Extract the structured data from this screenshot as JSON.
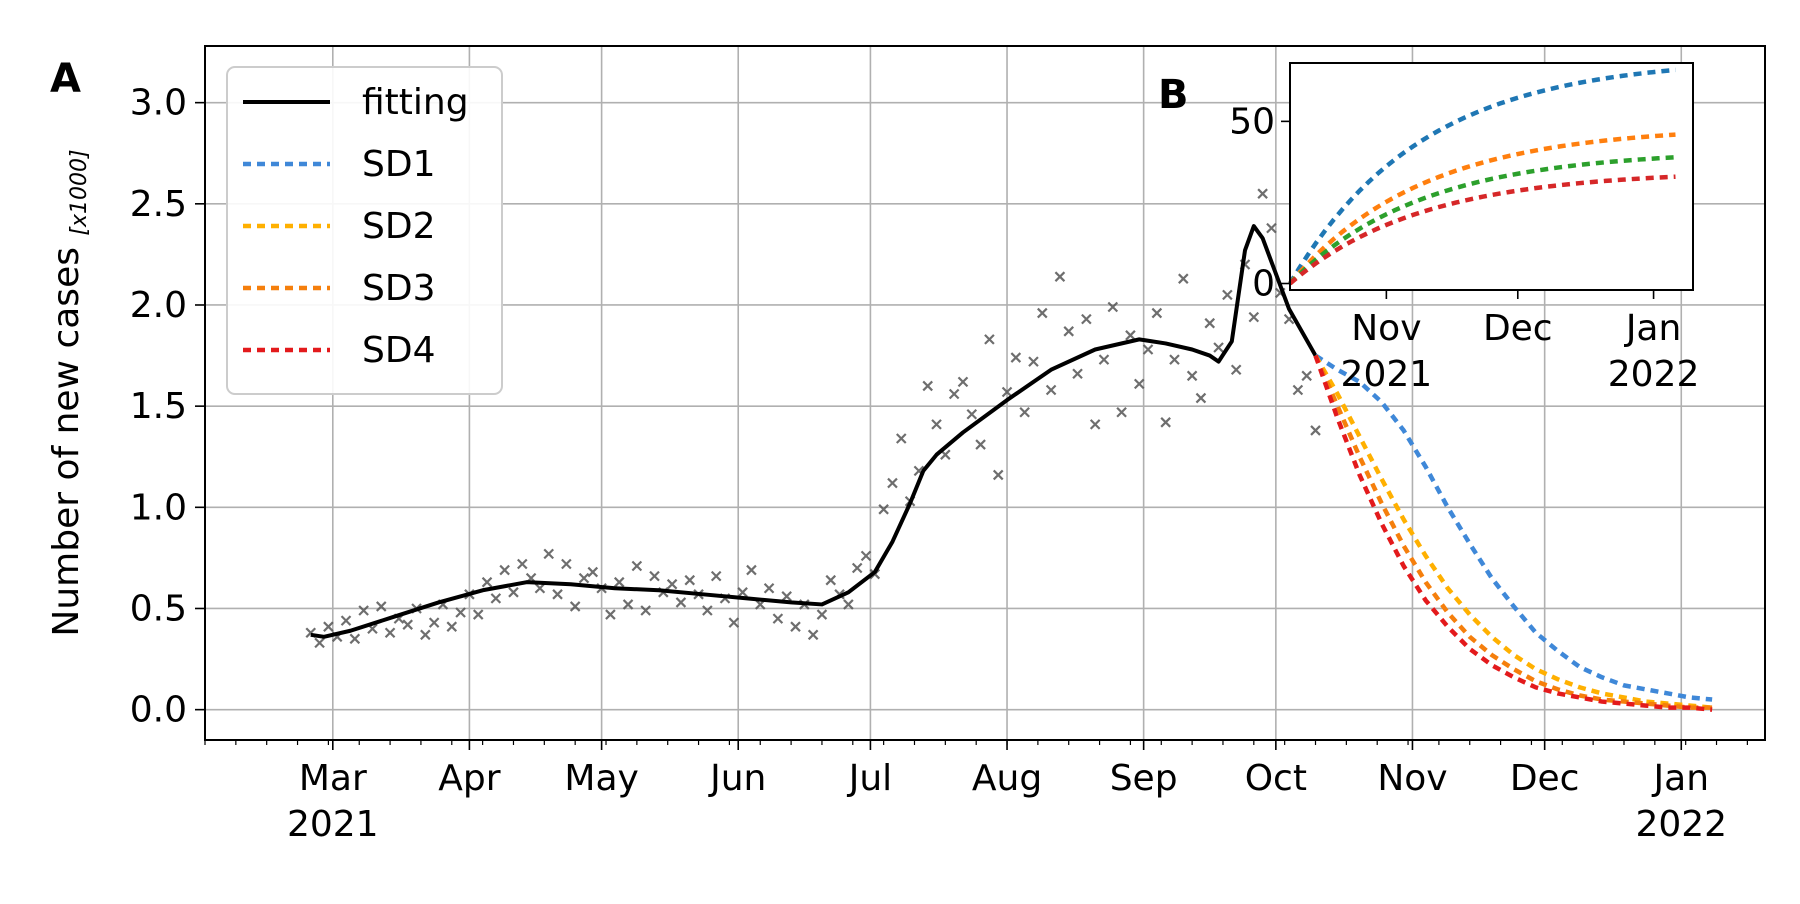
{
  "chart_data": [
    {
      "panel_label": "A",
      "type": "line",
      "ylabel": "Number of new cases",
      "ylabel_unit": "[x1000]",
      "ylim": [
        -0.15,
        3.28
      ],
      "xlim": [
        "2021-01-31",
        "2022-01-20"
      ],
      "grid": true,
      "legend_position": "top-left",
      "y_ticks": [
        "0.0",
        "0.5",
        "1.0",
        "1.5",
        "2.0",
        "2.5",
        "3.0"
      ],
      "x_ticks": [
        {
          "date": "2021-03-01",
          "label": "Mar",
          "year": "2021"
        },
        {
          "date": "2021-04-01",
          "label": "Apr",
          "year": ""
        },
        {
          "date": "2021-05-01",
          "label": "May",
          "year": ""
        },
        {
          "date": "2021-06-01",
          "label": "Jun",
          "year": ""
        },
        {
          "date": "2021-07-01",
          "label": "Jul",
          "year": ""
        },
        {
          "date": "2021-08-01",
          "label": "Aug",
          "year": ""
        },
        {
          "date": "2021-09-01",
          "label": "Sep",
          "year": ""
        },
        {
          "date": "2021-10-01",
          "label": "Oct",
          "year": ""
        },
        {
          "date": "2021-11-01",
          "label": "Nov",
          "year": ""
        },
        {
          "date": "2021-12-01",
          "label": "Dec",
          "year": ""
        },
        {
          "date": "2022-01-01",
          "label": "Jan",
          "year": "2022"
        }
      ],
      "series": [
        {
          "name": "fitting",
          "color": "#000000",
          "style": "solid",
          "x": [
            "2021-02-24",
            "2021-02-27",
            "2021-03-05",
            "2021-03-15",
            "2021-03-25",
            "2021-04-04",
            "2021-04-14",
            "2021-04-24",
            "2021-05-04",
            "2021-05-14",
            "2021-05-24",
            "2021-06-03",
            "2021-06-13",
            "2021-06-20",
            "2021-06-26",
            "2021-07-02",
            "2021-07-06",
            "2021-07-10",
            "2021-07-13",
            "2021-07-16",
            "2021-07-22",
            "2021-08-01",
            "2021-08-11",
            "2021-08-21",
            "2021-08-31",
            "2021-09-06",
            "2021-09-12",
            "2021-09-16",
            "2021-09-18",
            "2021-09-21",
            "2021-09-24",
            "2021-09-26",
            "2021-09-28",
            "2021-10-04",
            "2021-10-10"
          ],
          "y": [
            0.37,
            0.36,
            0.39,
            0.46,
            0.53,
            0.59,
            0.63,
            0.62,
            0.6,
            0.59,
            0.57,
            0.55,
            0.53,
            0.52,
            0.58,
            0.68,
            0.83,
            1.02,
            1.18,
            1.26,
            1.37,
            1.53,
            1.68,
            1.78,
            1.83,
            1.81,
            1.78,
            1.75,
            1.72,
            1.82,
            2.27,
            2.39,
            2.33,
            1.98,
            1.75
          ]
        },
        {
          "name": "SD1",
          "color": "#3f88d8",
          "style": "dotted",
          "x": [
            "2021-10-10",
            "2021-10-15",
            "2021-10-20",
            "2021-10-25",
            "2021-10-30",
            "2021-11-04",
            "2021-11-09",
            "2021-11-14",
            "2021-11-19",
            "2021-11-24",
            "2021-11-29",
            "2021-12-04",
            "2021-12-09",
            "2021-12-14",
            "2021-12-19",
            "2021-12-24",
            "2021-12-29",
            "2022-01-03",
            "2022-01-08"
          ],
          "y": [
            1.75,
            1.68,
            1.62,
            1.52,
            1.38,
            1.2,
            1.0,
            0.82,
            0.65,
            0.51,
            0.38,
            0.29,
            0.21,
            0.16,
            0.12,
            0.1,
            0.08,
            0.06,
            0.05
          ]
        },
        {
          "name": "SD2",
          "color": "#ffb000",
          "style": "dotted",
          "x": [
            "2021-10-10",
            "2021-10-15",
            "2021-10-20",
            "2021-10-25",
            "2021-10-30",
            "2021-11-04",
            "2021-11-09",
            "2021-11-14",
            "2021-11-19",
            "2021-11-24",
            "2021-11-29",
            "2021-12-04",
            "2021-12-09",
            "2021-12-14",
            "2021-12-19",
            "2021-12-24",
            "2021-12-29",
            "2022-01-03",
            "2022-01-08"
          ],
          "y": [
            1.75,
            1.56,
            1.35,
            1.14,
            0.94,
            0.76,
            0.6,
            0.47,
            0.36,
            0.27,
            0.2,
            0.15,
            0.11,
            0.08,
            0.06,
            0.04,
            0.03,
            0.02,
            0.01
          ]
        },
        {
          "name": "SD3",
          "color": "#f57f0c",
          "style": "dotted",
          "x": [
            "2021-10-10",
            "2021-10-15",
            "2021-10-20",
            "2021-10-25",
            "2021-10-30",
            "2021-11-04",
            "2021-11-09",
            "2021-11-14",
            "2021-11-19",
            "2021-11-24",
            "2021-11-29",
            "2021-12-04",
            "2021-12-09",
            "2021-12-14",
            "2021-12-19",
            "2021-12-24",
            "2021-12-29",
            "2022-01-03",
            "2022-01-08"
          ],
          "y": [
            1.75,
            1.5,
            1.25,
            1.02,
            0.81,
            0.63,
            0.48,
            0.36,
            0.27,
            0.2,
            0.14,
            0.1,
            0.07,
            0.05,
            0.04,
            0.03,
            0.02,
            0.01,
            0.01
          ]
        },
        {
          "name": "SD4",
          "color": "#e31a1c",
          "style": "dotted",
          "x": [
            "2021-10-10",
            "2021-10-15",
            "2021-10-20",
            "2021-10-25",
            "2021-10-30",
            "2021-11-04",
            "2021-11-09",
            "2021-11-14",
            "2021-11-19",
            "2021-11-24",
            "2021-11-29",
            "2021-12-04",
            "2021-12-09",
            "2021-12-14",
            "2021-12-19",
            "2021-12-24",
            "2021-12-29",
            "2022-01-03",
            "2022-01-08"
          ],
          "y": [
            1.75,
            1.44,
            1.16,
            0.92,
            0.71,
            0.54,
            0.41,
            0.3,
            0.22,
            0.16,
            0.11,
            0.08,
            0.06,
            0.04,
            0.03,
            0.02,
            0.01,
            0.01,
            0.0
          ]
        }
      ],
      "scatter": {
        "marker": "x",
        "color": "#555555",
        "x": [
          "2021-02-24",
          "2021-02-26",
          "2021-02-28",
          "2021-03-02",
          "2021-03-04",
          "2021-03-06",
          "2021-03-08",
          "2021-03-10",
          "2021-03-12",
          "2021-03-14",
          "2021-03-16",
          "2021-03-18",
          "2021-03-20",
          "2021-03-22",
          "2021-03-24",
          "2021-03-26",
          "2021-03-28",
          "2021-03-30",
          "2021-04-01",
          "2021-04-03",
          "2021-04-05",
          "2021-04-07",
          "2021-04-09",
          "2021-04-11",
          "2021-04-13",
          "2021-04-15",
          "2021-04-17",
          "2021-04-19",
          "2021-04-21",
          "2021-04-23",
          "2021-04-25",
          "2021-04-27",
          "2021-04-29",
          "2021-05-01",
          "2021-05-03",
          "2021-05-05",
          "2021-05-07",
          "2021-05-09",
          "2021-05-11",
          "2021-05-13",
          "2021-05-15",
          "2021-05-17",
          "2021-05-19",
          "2021-05-21",
          "2021-05-23",
          "2021-05-25",
          "2021-05-27",
          "2021-05-29",
          "2021-05-31",
          "2021-06-02",
          "2021-06-04",
          "2021-06-06",
          "2021-06-08",
          "2021-06-10",
          "2021-06-12",
          "2021-06-14",
          "2021-06-16",
          "2021-06-18",
          "2021-06-20",
          "2021-06-22",
          "2021-06-24",
          "2021-06-26",
          "2021-06-28",
          "2021-06-30",
          "2021-07-02",
          "2021-07-04",
          "2021-07-06",
          "2021-07-08",
          "2021-07-10",
          "2021-07-12",
          "2021-07-14",
          "2021-07-16",
          "2021-07-18",
          "2021-07-20",
          "2021-07-22",
          "2021-07-24",
          "2021-07-26",
          "2021-07-28",
          "2021-07-30",
          "2021-08-01",
          "2021-08-03",
          "2021-08-05",
          "2021-08-07",
          "2021-08-09",
          "2021-08-11",
          "2021-08-13",
          "2021-08-15",
          "2021-08-17",
          "2021-08-19",
          "2021-08-21",
          "2021-08-23",
          "2021-08-25",
          "2021-08-27",
          "2021-08-29",
          "2021-08-31",
          "2021-09-02",
          "2021-09-04",
          "2021-09-06",
          "2021-09-08",
          "2021-09-10",
          "2021-09-12",
          "2021-09-14",
          "2021-09-16",
          "2021-09-18",
          "2021-09-20",
          "2021-09-22",
          "2021-09-24",
          "2021-09-26",
          "2021-09-28",
          "2021-09-30",
          "2021-10-02",
          "2021-10-04",
          "2021-10-06",
          "2021-10-08",
          "2021-10-10"
        ],
        "y": [
          0.38,
          0.33,
          0.41,
          0.36,
          0.44,
          0.35,
          0.49,
          0.4,
          0.51,
          0.38,
          0.45,
          0.42,
          0.5,
          0.37,
          0.43,
          0.52,
          0.41,
          0.48,
          0.57,
          0.47,
          0.63,
          0.55,
          0.69,
          0.58,
          0.72,
          0.65,
          0.6,
          0.77,
          0.57,
          0.72,
          0.51,
          0.65,
          0.68,
          0.6,
          0.47,
          0.63,
          0.52,
          0.71,
          0.49,
          0.66,
          0.58,
          0.62,
          0.53,
          0.64,
          0.57,
          0.49,
          0.66,
          0.55,
          0.43,
          0.58,
          0.69,
          0.52,
          0.6,
          0.45,
          0.56,
          0.41,
          0.52,
          0.37,
          0.47,
          0.64,
          0.57,
          0.52,
          0.7,
          0.76,
          0.67,
          0.99,
          1.12,
          1.34,
          1.03,
          1.18,
          1.6,
          1.41,
          1.26,
          1.56,
          1.62,
          1.46,
          1.31,
          1.83,
          1.16,
          1.57,
          1.74,
          1.47,
          1.72,
          1.96,
          1.58,
          2.14,
          1.87,
          1.66,
          1.93,
          1.41,
          1.73,
          1.99,
          1.47,
          1.85,
          1.61,
          1.78,
          1.96,
          1.42,
          1.73,
          2.13,
          1.65,
          1.54,
          1.91,
          1.79,
          2.05,
          1.68,
          2.2,
          1.94,
          2.55,
          2.38,
          2.06,
          1.93,
          1.58,
          1.65,
          1.38
        ]
      }
    },
    {
      "panel_label": "B",
      "type": "line",
      "ylim": [
        -2,
        68
      ],
      "xlim": [
        "2021-10-10",
        "2022-01-10"
      ],
      "y_ticks": [
        "0",
        "50"
      ],
      "x_ticks": [
        {
          "date": "2021-11-01",
          "label": "Nov",
          "year": "2021"
        },
        {
          "date": "2021-12-01",
          "label": "Dec",
          "year": ""
        },
        {
          "date": "2022-01-01",
          "label": "Jan",
          "year": "2022"
        }
      ],
      "series": [
        {
          "color": "#1f77b4",
          "style": "dotted",
          "final_value": 66
        },
        {
          "color": "#ff7f0e",
          "style": "dotted",
          "final_value": 46
        },
        {
          "color": "#2ca02c",
          "style": "dotted",
          "final_value": 39
        },
        {
          "color": "#d62728",
          "style": "dotted",
          "final_value": 33
        }
      ]
    }
  ]
}
